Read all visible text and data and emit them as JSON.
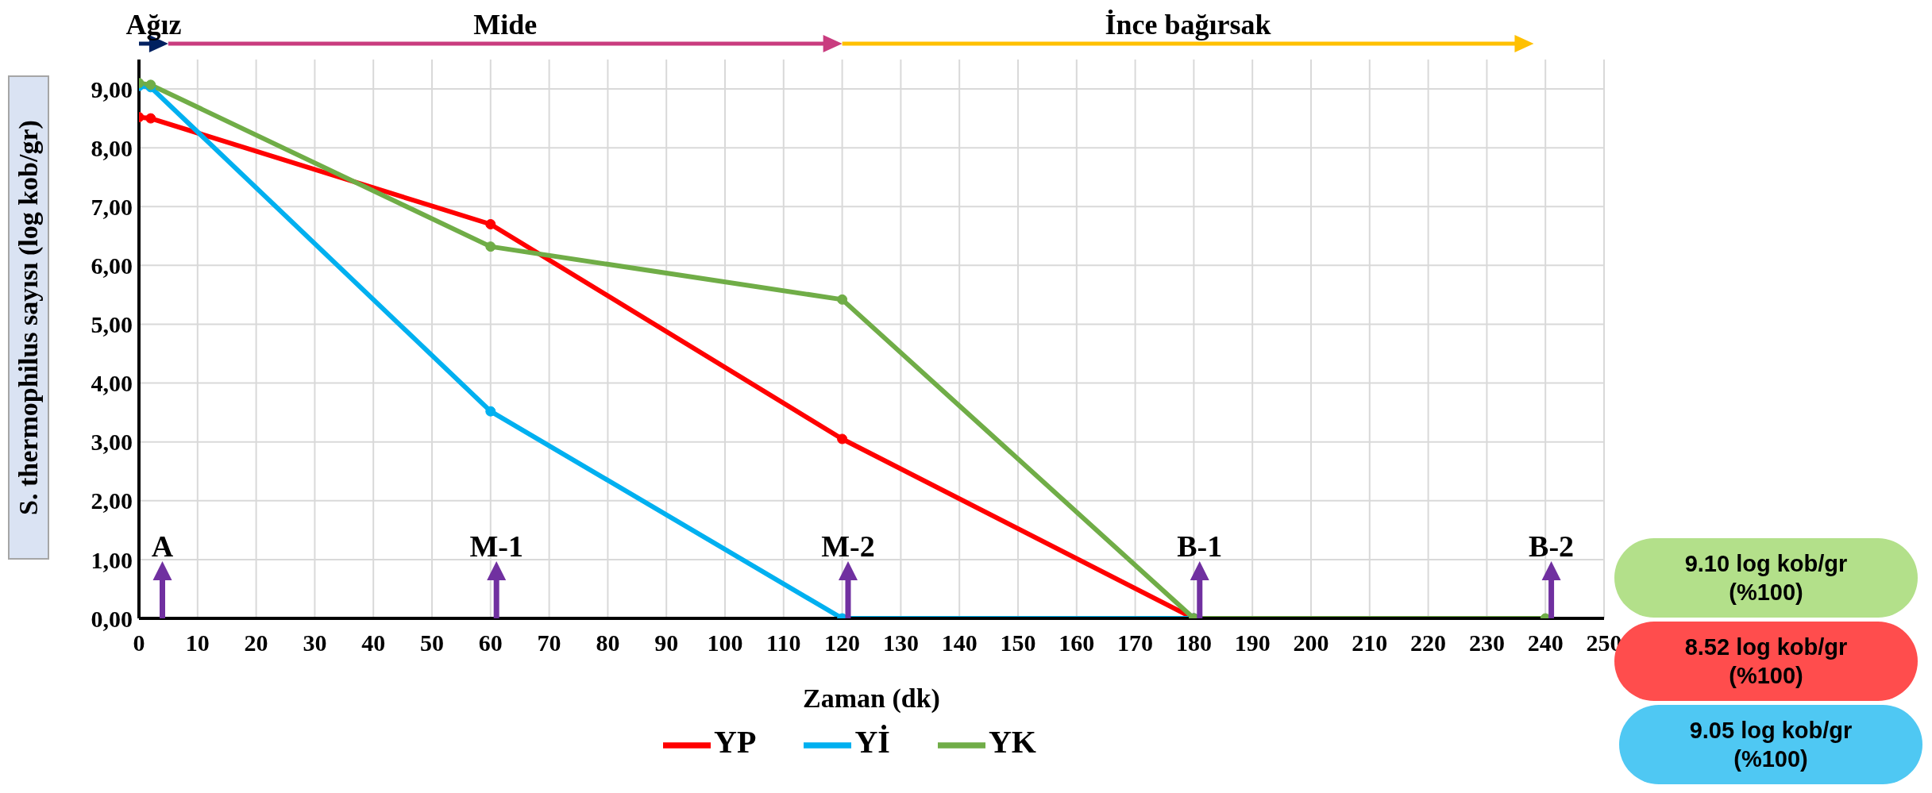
{
  "chart_data": {
    "type": "line",
    "xlabel": "Zaman (dk)",
    "ylabel": "S. thermophilus sayısı  (log kob/gr)",
    "x": [
      0,
      2,
      60,
      120,
      180,
      240
    ],
    "series": [
      {
        "name": "YP",
        "color": "#ff0000",
        "values": [
          8.52,
          8.5,
          6.7,
          3.05,
          0,
          null
        ]
      },
      {
        "name": "Yİ",
        "color": "#00b0f0",
        "values": [
          9.05,
          9.03,
          3.52,
          0,
          0,
          null
        ]
      },
      {
        "name": "YK",
        "color": "#70ad47",
        "values": [
          9.1,
          9.07,
          6.32,
          5.42,
          0,
          0
        ]
      }
    ],
    "xlim": [
      0,
      250
    ],
    "xticks": [
      0,
      10,
      20,
      30,
      40,
      50,
      60,
      70,
      80,
      90,
      100,
      110,
      120,
      130,
      140,
      150,
      160,
      170,
      180,
      190,
      200,
      210,
      220,
      230,
      240,
      250
    ],
    "ylim": [
      0,
      9.5
    ],
    "yticks": [
      {
        "value": 0,
        "label": "0,00"
      },
      {
        "value": 1,
        "label": "1,00"
      },
      {
        "value": 2,
        "label": "2,00"
      },
      {
        "value": 3,
        "label": "3,00"
      },
      {
        "value": 4,
        "label": "4,00"
      },
      {
        "value": 5,
        "label": "5,00"
      },
      {
        "value": 6,
        "label": "6,00"
      },
      {
        "value": 7,
        "label": "7,00"
      },
      {
        "value": 8,
        "label": "8,00"
      },
      {
        "value": 9,
        "label": "9,00"
      }
    ],
    "grid": true,
    "legend": "bottom",
    "marker": "circle",
    "line_style": "solid",
    "annotations": [
      "Ağız",
      "Mide",
      "İnce bağırsak",
      "A",
      "M-1",
      "M-2",
      "B-1",
      "B-2",
      "9.10 log kob/gr (%100)",
      "8.52 log kob/gr (%100)",
      "9.05 log kob/gr (%100)"
    ]
  }
}
